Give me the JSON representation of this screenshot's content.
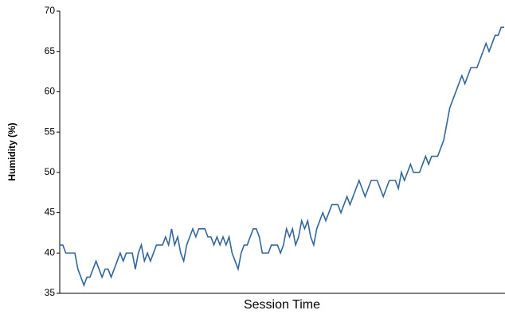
{
  "chart_data": {
    "type": "line",
    "y_label": "Humidity (%)",
    "x_label": "Session Time",
    "ylim": [
      35,
      70
    ],
    "yticks": [
      35,
      40,
      45,
      50,
      55,
      60,
      65,
      70
    ],
    "color": "#336699",
    "values": [
      41,
      41,
      40,
      40,
      40,
      40,
      38,
      37,
      36,
      37,
      37,
      38,
      39,
      38,
      37,
      38,
      38,
      37,
      38,
      39,
      40,
      39,
      40,
      40,
      40,
      38,
      40,
      41,
      39,
      40,
      39,
      40,
      41,
      41,
      41,
      42,
      41,
      43,
      41,
      42,
      40,
      39,
      41,
      42,
      43,
      42,
      43,
      43,
      43,
      42,
      42,
      41,
      42,
      41,
      42,
      41,
      42,
      40,
      39,
      38,
      40,
      41,
      41,
      42,
      43,
      43,
      42,
      40,
      40,
      40,
      41,
      41,
      41,
      40,
      41,
      43,
      42,
      43,
      41,
      42,
      44,
      43,
      44,
      42,
      41,
      43,
      44,
      45,
      44,
      45,
      46,
      46,
      46,
      45,
      46,
      47,
      46,
      47,
      48,
      49,
      48,
      47,
      48,
      49,
      49,
      49,
      48,
      47,
      48,
      49,
      49,
      49,
      48,
      50,
      49,
      50,
      51,
      50,
      50,
      50,
      51,
      52,
      51,
      52,
      52,
      52,
      53,
      54,
      56,
      58,
      59,
      60,
      61,
      62,
      61,
      62,
      63,
      63,
      63,
      64,
      65,
      66,
      65,
      66,
      67,
      67,
      68,
      68
    ]
  }
}
